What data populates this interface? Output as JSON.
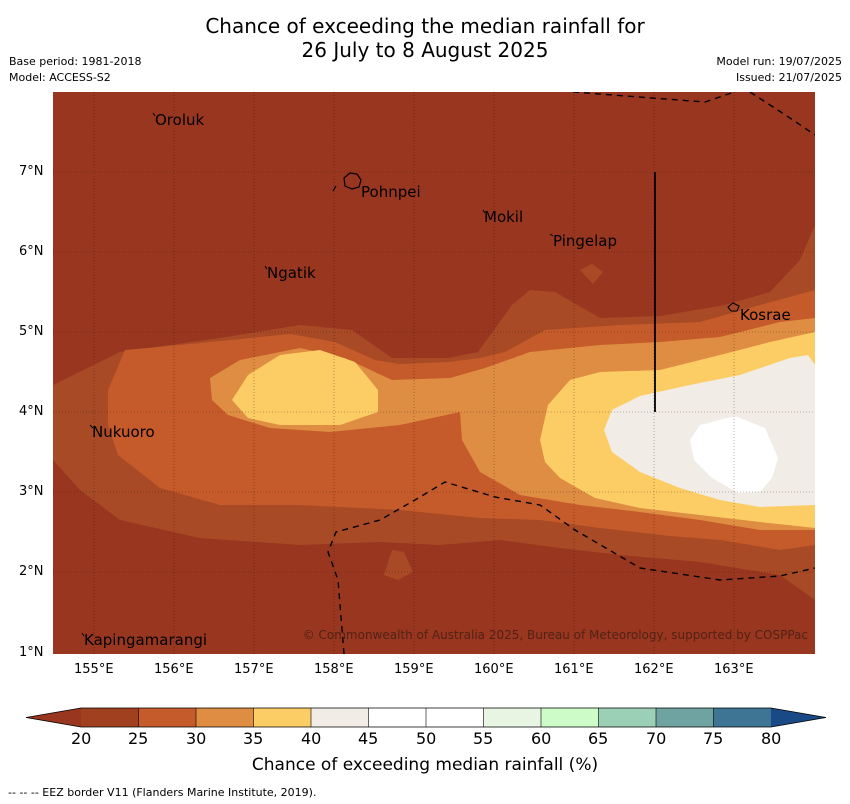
{
  "title_line1": "Chance of exceeding the median rainfall for",
  "title_line2": "26 July to 8 August 2025",
  "base_period": "Base period: 1981-2018",
  "model": "Model: ACCESS-S2",
  "model_run": "Model run: 19/07/2025",
  "issued": "Issued: 21/07/2025",
  "lon_ticks": [
    "155°E",
    "156°E",
    "157°E",
    "158°E",
    "159°E",
    "160°E",
    "161°E",
    "162°E",
    "163°E"
  ],
  "lat_ticks": [
    "7°N",
    "6°N",
    "5°N",
    "4°N",
    "3°N",
    "2°N",
    "1°N"
  ],
  "places": {
    "oroluk": "Oroluk",
    "pohnpei": "Pohnpei",
    "mokil": "Mokil",
    "pingelap": "Pingelap",
    "ngatik": "Ngatik",
    "kosrae": "Kosrae",
    "nukuoro": "Nukuoro",
    "kapingamarangi": "Kapingamarangi"
  },
  "credit": "© Commonwealth of Australia 2025, Bureau of Meteorology, supported by COSPPac",
  "colorbar": {
    "ticks": [
      "20",
      "25",
      "30",
      "35",
      "40",
      "45",
      "50",
      "55",
      "60",
      "65",
      "70",
      "75",
      "80"
    ],
    "colors": [
      "#a0401f",
      "#c55a2a",
      "#df8d43",
      "#fdcd65",
      "#f1ece6",
      "#ffffff",
      "#ffffff",
      "#e7f5e2",
      "#cdfcc8",
      "#9cd0b6",
      "#6fa3a2",
      "#3e7595"
    ],
    "low_color": "#993620",
    "high_color": "#1a4a85",
    "label": "Chance of exceeding median rainfall (%)"
  },
  "footnote": "--  --  -- EEZ border V11 (Flanders Marine Institute, 2019)."
}
